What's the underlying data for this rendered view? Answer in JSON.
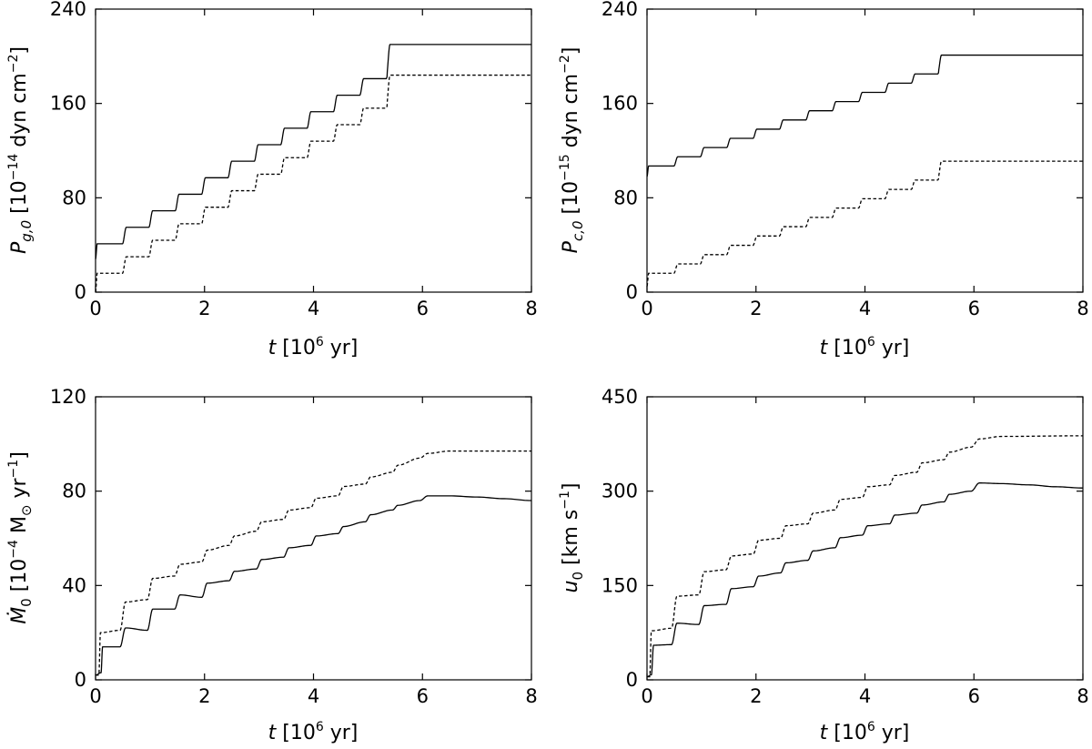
{
  "figure": {
    "background": "#ffffff",
    "line_color": "#000000"
  },
  "chart_data": [
    {
      "id": "pg0",
      "type": "line",
      "x_axis": {
        "label_var": "t",
        "label_prefix": " [10",
        "label_exp": "6",
        "label_suffix": " yr]",
        "range": [
          0,
          8
        ],
        "ticks": [
          "0",
          "2",
          "4",
          "6",
          "8"
        ]
      },
      "y_axis": {
        "label_var": "P",
        "label_sub": "g,0",
        "label_text": " [10",
        "label_exp1": "−14",
        "label_mid": " dyn cm",
        "label_exp2": "−2",
        "label_end": "]",
        "range": [
          0,
          240
        ],
        "ticks": [
          "0",
          "80",
          "160",
          "240"
        ]
      },
      "series": [
        {
          "name": "solid",
          "style": "solid",
          "model": "stair",
          "v0": 28,
          "step1": 41,
          "step_inc": 14,
          "start": 0.03,
          "period": 0.484,
          "n_steps": 12,
          "end_value": 210,
          "tail": "flat"
        },
        {
          "name": "dashed",
          "style": "dashed",
          "model": "stair",
          "v0": 0,
          "step1": 16,
          "step_inc": 14,
          "start": 0.03,
          "period": 0.484,
          "n_steps": 12,
          "end_value": 184,
          "tail": "flat"
        }
      ]
    },
    {
      "id": "pc0",
      "type": "line",
      "x_axis": {
        "label_var": "t",
        "label_prefix": " [10",
        "label_exp": "6",
        "label_suffix": " yr]",
        "range": [
          0,
          8
        ],
        "ticks": [
          "0",
          "2",
          "4",
          "6",
          "8"
        ]
      },
      "y_axis": {
        "label_var": "P",
        "label_sub": "c,0",
        "label_text": " [10",
        "label_exp1": "−15",
        "label_mid": " dyn cm",
        "label_exp2": "−2",
        "label_end": "]",
        "range": [
          0,
          240
        ],
        "ticks": [
          "0",
          "80",
          "160",
          "240"
        ]
      },
      "series": [
        {
          "name": "solid",
          "style": "solid",
          "model": "stair",
          "v0": 98,
          "step1": 107,
          "step_inc": 7.8,
          "start": 0.03,
          "period": 0.484,
          "n_steps": 12,
          "end_value": 201,
          "tail": "flat"
        },
        {
          "name": "dashed",
          "style": "dashed",
          "model": "stair",
          "v0": 5,
          "step1": 16,
          "step_inc": 7.9,
          "start": 0.03,
          "period": 0.484,
          "n_steps": 12,
          "end_value": 111,
          "tail": "flat"
        }
      ]
    },
    {
      "id": "mdot0",
      "type": "line",
      "x_axis": {
        "label_var": "t",
        "label_prefix": " [10",
        "label_exp": "6",
        "label_suffix": " yr]",
        "range": [
          0,
          8
        ],
        "ticks": [
          "0",
          "2",
          "4",
          "6",
          "8"
        ]
      },
      "y_axis": {
        "label_var": "Ṁ",
        "label_sub": "0",
        "label_text": " [10",
        "label_exp1": "−4",
        "label_mid": " M",
        "label_sun": "⊙",
        "label_mid2": " yr",
        "label_exp2": "−1",
        "label_end": "]",
        "range": [
          0,
          120
        ],
        "ticks": [
          "0",
          "40",
          "80",
          "120"
        ]
      },
      "series": [
        {
          "name": "solid",
          "style": "solid",
          "model": "wave",
          "points": [
            [
              0,
              2
            ],
            [
              0.1,
              3
            ],
            [
              0.13,
              14
            ],
            [
              0.45,
              14
            ],
            [
              0.55,
              22
            ],
            [
              0.95,
              21
            ],
            [
              1.05,
              30
            ],
            [
              1.45,
              30
            ],
            [
              1.55,
              36
            ],
            [
              1.95,
              35
            ],
            [
              2.05,
              41
            ],
            [
              2.45,
              42
            ],
            [
              2.55,
              46
            ],
            [
              2.95,
              47
            ],
            [
              3.05,
              51
            ],
            [
              3.45,
              52
            ],
            [
              3.55,
              56
            ],
            [
              3.95,
              57
            ],
            [
              4.05,
              61
            ],
            [
              4.45,
              62
            ],
            [
              4.55,
              65
            ],
            [
              4.95,
              67
            ],
            [
              5.05,
              70
            ],
            [
              5.45,
              72
            ],
            [
              5.55,
              74
            ],
            [
              5.95,
              76
            ],
            [
              6.1,
              78
            ],
            [
              6.5,
              78
            ],
            [
              7.0,
              77.5
            ],
            [
              7.5,
              76.8
            ],
            [
              8,
              76
            ]
          ]
        },
        {
          "name": "dashed",
          "style": "dashed",
          "model": "wave",
          "points": [
            [
              0,
              2
            ],
            [
              0.06,
              2
            ],
            [
              0.09,
              20
            ],
            [
              0.45,
              21
            ],
            [
              0.55,
              33
            ],
            [
              0.95,
              34
            ],
            [
              1.05,
              43
            ],
            [
              1.45,
              44
            ],
            [
              1.55,
              49
            ],
            [
              1.95,
              50
            ],
            [
              2.05,
              55
            ],
            [
              2.45,
              57
            ],
            [
              2.55,
              61
            ],
            [
              2.95,
              63
            ],
            [
              3.05,
              67
            ],
            [
              3.45,
              68
            ],
            [
              3.55,
              72
            ],
            [
              3.95,
              73
            ],
            [
              4.05,
              77
            ],
            [
              4.45,
              78
            ],
            [
              4.55,
              82
            ],
            [
              4.95,
              83
            ],
            [
              5.05,
              86
            ],
            [
              5.45,
              88
            ],
            [
              5.55,
              91
            ],
            [
              5.95,
              94
            ],
            [
              6.1,
              96
            ],
            [
              6.5,
              97
            ],
            [
              8,
              97
            ]
          ]
        }
      ]
    },
    {
      "id": "u0",
      "type": "line",
      "x_axis": {
        "label_var": "t",
        "label_prefix": " [10",
        "label_exp": "6",
        "label_suffix": " yr]",
        "range": [
          0,
          8
        ],
        "ticks": [
          "0",
          "2",
          "4",
          "6",
          "8"
        ]
      },
      "y_axis": {
        "label_var": "u",
        "label_sub": "0",
        "label_text": " [km s",
        "label_exp1": "−1",
        "label_end": "]",
        "range": [
          0,
          450
        ],
        "ticks": [
          "0",
          "150",
          "300",
          "450"
        ]
      },
      "series": [
        {
          "name": "solid",
          "style": "solid",
          "model": "wave",
          "points": [
            [
              0,
              5
            ],
            [
              0.08,
              8
            ],
            [
              0.12,
              55
            ],
            [
              0.45,
              56
            ],
            [
              0.55,
              90
            ],
            [
              0.95,
              88
            ],
            [
              1.05,
              118
            ],
            [
              1.45,
              120
            ],
            [
              1.55,
              145
            ],
            [
              1.95,
              148
            ],
            [
              2.05,
              165
            ],
            [
              2.45,
              170
            ],
            [
              2.55,
              186
            ],
            [
              2.95,
              190
            ],
            [
              3.05,
              205
            ],
            [
              3.45,
              210
            ],
            [
              3.55,
              226
            ],
            [
              3.95,
              230
            ],
            [
              4.05,
              245
            ],
            [
              4.45,
              248
            ],
            [
              4.55,
              262
            ],
            [
              4.95,
              265
            ],
            [
              5.05,
              278
            ],
            [
              5.45,
              283
            ],
            [
              5.55,
              295
            ],
            [
              5.95,
              300
            ],
            [
              6.1,
              313
            ],
            [
              6.5,
              312
            ],
            [
              7.0,
              310
            ],
            [
              7.5,
              307
            ],
            [
              8,
              305
            ]
          ]
        },
        {
          "name": "dashed",
          "style": "dashed",
          "model": "wave",
          "points": [
            [
              0,
              5
            ],
            [
              0.05,
              5
            ],
            [
              0.08,
              78
            ],
            [
              0.45,
              82
            ],
            [
              0.55,
              133
            ],
            [
              0.95,
              135
            ],
            [
              1.05,
              172
            ],
            [
              1.45,
              175
            ],
            [
              1.55,
              197
            ],
            [
              1.95,
              200
            ],
            [
              2.05,
              222
            ],
            [
              2.45,
              225
            ],
            [
              2.55,
              245
            ],
            [
              2.95,
              248
            ],
            [
              3.05,
              265
            ],
            [
              3.45,
              270
            ],
            [
              3.55,
              287
            ],
            [
              3.95,
              290
            ],
            [
              4.05,
              307
            ],
            [
              4.45,
              310
            ],
            [
              4.55,
              325
            ],
            [
              4.95,
              330
            ],
            [
              5.05,
              345
            ],
            [
              5.45,
              350
            ],
            [
              5.55,
              362
            ],
            [
              5.95,
              370
            ],
            [
              6.1,
              383
            ],
            [
              6.5,
              387
            ],
            [
              8,
              388
            ]
          ]
        }
      ]
    }
  ]
}
